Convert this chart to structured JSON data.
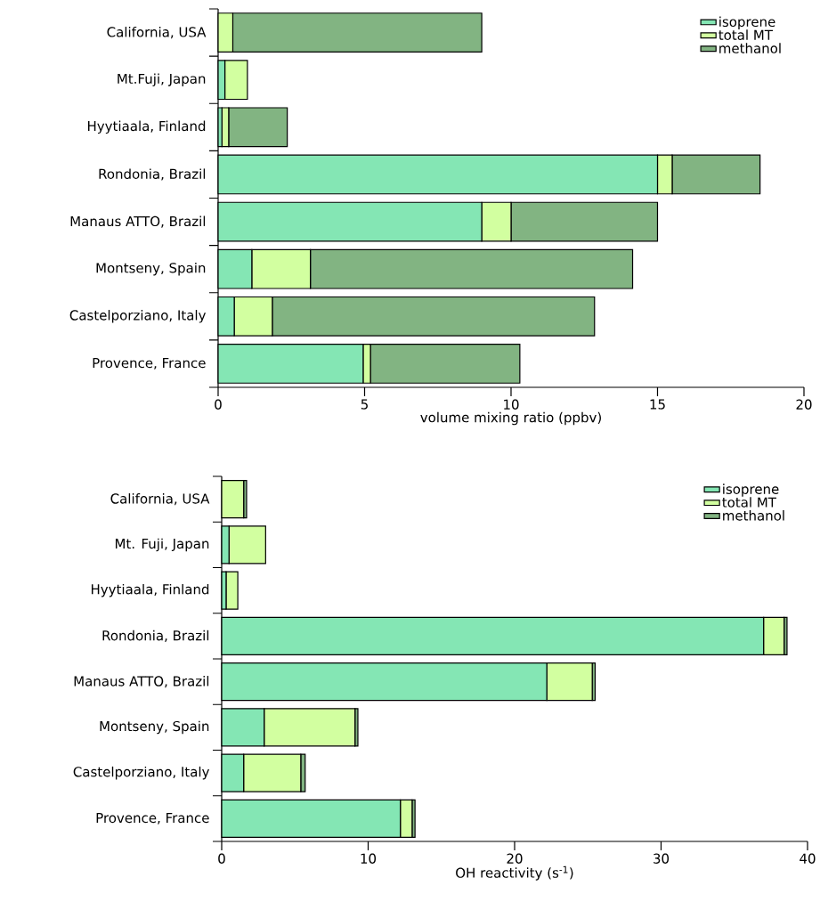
{
  "chart_data": [
    {
      "type": "bar",
      "orientation": "horizontal",
      "stacked": true,
      "legend": "top right",
      "categories": [
        "California, USA",
        "Mt.Fuji, Japan",
        "Hyytiaala, Finland",
        "Rondonia, Brazil",
        "Manaus ATTO, Brazil",
        "Montseny, Spain",
        "Castelporziano, Italy",
        "Provence, France"
      ],
      "series": [
        {
          "name": "isoprene",
          "color": "#84e6b4",
          "values": [
            0,
            0.23,
            0.13,
            15.0,
            9.0,
            1.15,
            0.55,
            4.95
          ]
        },
        {
          "name": "total MT",
          "color": "#d2ffa0",
          "values": [
            0.5,
            0.77,
            0.23,
            0.5,
            1.0,
            2.0,
            1.3,
            0.25
          ]
        },
        {
          "name": "methanol",
          "color": "#82b482",
          "values": [
            8.5,
            0,
            2.0,
            3.0,
            5.0,
            11.0,
            11.0,
            5.1
          ]
        }
      ],
      "xlim": [
        0,
        20
      ],
      "xticks": [
        0,
        5,
        10,
        15,
        20
      ],
      "xlabel": "volume mixing ratio (ppbv)"
    },
    {
      "type": "bar",
      "orientation": "horizontal",
      "stacked": true,
      "legend": "top right",
      "categories": [
        "California, USA",
        "Mt. Fuji, Japan",
        "Hyytiaala, Finland",
        "Rondonia, Brazil",
        "Manaus ATTO, Brazil",
        "Montseny, Spain",
        "Castelporziano, Italy",
        "Provence, France"
      ],
      "series": [
        {
          "name": "isoprene",
          "color": "#84e6b4",
          "values": [
            0,
            0.5,
            0.3,
            37.0,
            22.2,
            2.9,
            1.5,
            12.2
          ]
        },
        {
          "name": "total MT",
          "color": "#d2ffa0",
          "values": [
            1.5,
            2.5,
            0.8,
            1.4,
            3.1,
            6.2,
            3.9,
            0.8
          ]
        },
        {
          "name": "methanol",
          "color": "#82b482",
          "values": [
            0.2,
            0,
            0,
            0.2,
            0.2,
            0.2,
            0.3,
            0.2
          ]
        }
      ],
      "xlim": [
        0,
        40
      ],
      "xticks": [
        0,
        10,
        20,
        30,
        40
      ],
      "xlabel": "OH reactivity (s$^{-1}$)"
    }
  ]
}
